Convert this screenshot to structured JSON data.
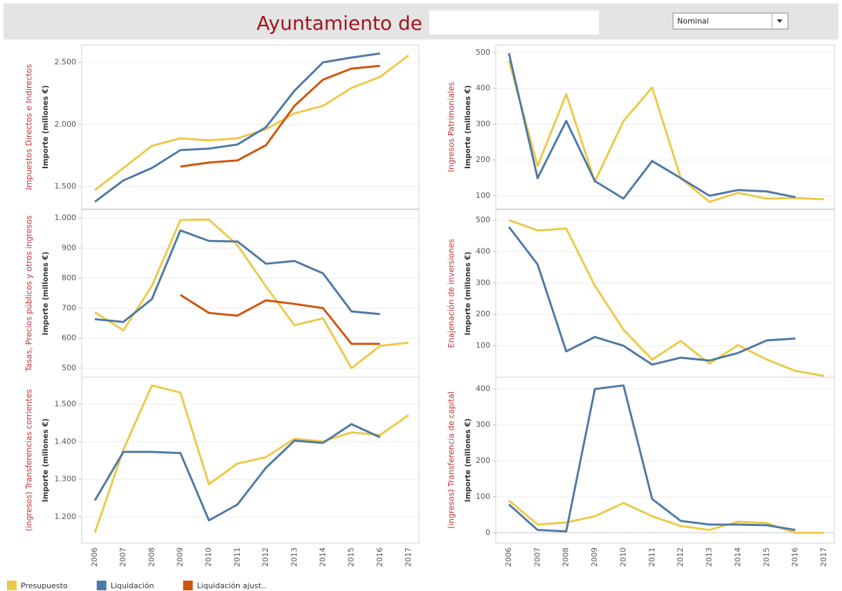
{
  "header": {
    "title": "Ayuntamiento de",
    "dropdown": "Nominal"
  },
  "chart_data": [
    {
      "type": "line",
      "title": "Impuestos Directos e Indirectos",
      "ylabel": "Importe (millones €)",
      "ylim": [
        1320,
        2640
      ],
      "yticks": [
        {
          "value": 1500,
          "label": "1.500"
        },
        {
          "value": 2000,
          "label": "2.000"
        },
        {
          "value": 2500,
          "label": "2.500"
        }
      ],
      "grid": true,
      "series": [
        {
          "name": "Presupuesto",
          "color": "#edc948",
          "values": [
            1472,
            1650,
            1828,
            1889,
            1872,
            1889,
            1961,
            2089,
            2150,
            2294,
            2383,
            2556
          ]
        },
        {
          "name": "Liquidación",
          "color": "#4e79a7",
          "values": [
            1378,
            1550,
            1650,
            1794,
            1806,
            1839,
            1978,
            2272,
            2500,
            2539,
            2572,
            null
          ]
        },
        {
          "name": "Liquidación ajust..",
          "color": "#d0530b",
          "values": [
            null,
            null,
            null,
            1661,
            1694,
            1711,
            1833,
            2150,
            2361,
            2450,
            2472,
            null
          ]
        }
      ]
    },
    {
      "type": "line",
      "title": "Tasas, Precios públicos y otros ingresos",
      "ylabel": "Importe (millones €)",
      "ylim": [
        470,
        1028
      ],
      "yticks": [
        500,
        600,
        700,
        800,
        900,
        {
          "value": 1000,
          "label": "1.000"
        }
      ],
      "grid": true,
      "series": [
        {
          "name": "Presupuesto",
          "color": "#edc948",
          "values": [
            686,
            626,
            774,
            993,
            995,
            910,
            772,
            643,
            666,
            500,
            574,
            585
          ]
        },
        {
          "name": "Liquidación",
          "color": "#4e79a7",
          "values": [
            663,
            654,
            730,
            959,
            924,
            922,
            848,
            857,
            816,
            689,
            680,
            null
          ]
        },
        {
          "name": "Liquidación ajust..",
          "color": "#d0530b",
          "values": [
            null,
            null,
            null,
            744,
            684,
            675,
            726,
            714,
            700,
            581,
            581,
            null
          ]
        }
      ]
    },
    {
      "type": "line",
      "title": "(ingresos) Transferencias corrientes",
      "ylabel": "Importe (millones €)",
      "ylim": [
        1130,
        1572
      ],
      "yticks": [
        {
          "value": 1200,
          "label": "1.200"
        },
        {
          "value": 1300,
          "label": "1.300"
        },
        {
          "value": 1400,
          "label": "1.400"
        },
        {
          "value": 1500,
          "label": "1.500"
        }
      ],
      "grid": true,
      "categories": [
        "2006",
        "2007",
        "2008",
        "2009",
        "2010",
        "2011",
        "2012",
        "2013",
        "2014",
        "2015",
        "2016",
        "2017"
      ],
      "series": [
        {
          "name": "Presupuesto",
          "color": "#edc948",
          "values": [
            1158,
            1379,
            1550,
            1531,
            1287,
            1342,
            1359,
            1408,
            1401,
            1425,
            1418,
            1471
          ]
        },
        {
          "name": "Liquidación",
          "color": "#4e79a7",
          "values": [
            1244,
            1373,
            1373,
            1370,
            1191,
            1233,
            1331,
            1403,
            1397,
            1447,
            1412,
            null
          ]
        }
      ]
    },
    {
      "type": "line",
      "title": "Ingresos Patrimoniales",
      "ylabel": "Importe (millones €)",
      "ylim": [
        63,
        521
      ],
      "yticks": [
        100,
        200,
        300,
        400,
        500
      ],
      "grid": true,
      "series": [
        {
          "name": "Presupuesto",
          "color": "#edc948",
          "values": [
            477,
            183,
            384,
            139,
            309,
            402,
            149,
            83,
            108,
            92,
            94,
            90
          ]
        },
        {
          "name": "Liquidación",
          "color": "#4e79a7",
          "values": [
            498,
            149,
            309,
            141,
            92,
            197,
            149,
            100,
            116,
            112,
            96,
            null
          ]
        }
      ]
    },
    {
      "type": "line",
      "title": "Enajenación de inversiones",
      "ylabel": "Importe (millones €)",
      "ylim": [
        0,
        533
      ],
      "yticks": [
        100,
        200,
        300,
        400,
        500
      ],
      "grid": true,
      "series": [
        {
          "name": "Presupuesto",
          "color": "#edc948",
          "values": [
            500,
            467,
            473,
            291,
            151,
            56,
            115,
            43,
            102,
            56,
            20,
            4
          ]
        },
        {
          "name": "Liquidación",
          "color": "#4e79a7",
          "values": [
            478,
            359,
            82,
            128,
            100,
            40,
            62,
            53,
            77,
            117,
            123,
            null
          ]
        }
      ]
    },
    {
      "type": "line",
      "title": "(ingresos) Transferencia de capital",
      "ylabel": "Importe (millones €)",
      "ylim": [
        -29,
        433
      ],
      "yticks": [
        0,
        100,
        200,
        300,
        400
      ],
      "grid": true,
      "zero_line": true,
      "categories": [
        "2006",
        "2007",
        "2008",
        "2009",
        "2010",
        "2011",
        "2012",
        "2013",
        "2014",
        "2015",
        "2016",
        "2017"
      ],
      "series": [
        {
          "name": "Presupuesto",
          "color": "#edc948",
          "values": [
            90,
            23,
            29,
            46,
            83,
            46,
            19,
            8,
            31,
            27,
            0,
            0
          ]
        },
        {
          "name": "Liquidación",
          "color": "#4e79a7",
          "values": [
            79,
            8,
            4,
            400,
            410,
            94,
            33,
            23,
            23,
            21,
            8,
            null
          ]
        }
      ]
    }
  ]
}
